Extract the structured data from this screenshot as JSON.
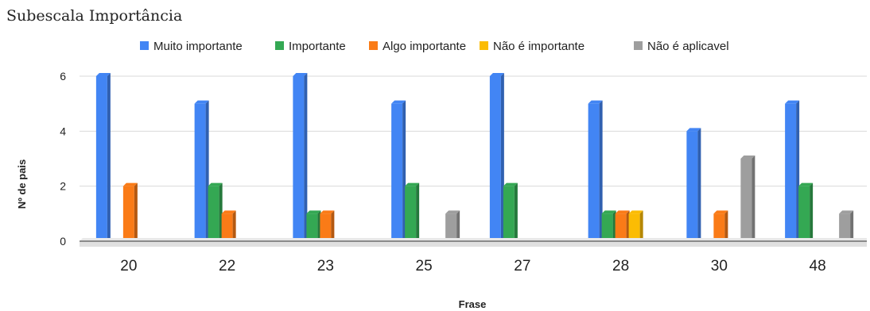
{
  "chart_data": {
    "type": "bar",
    "title": "Subescala Importância",
    "xlabel": "Frase",
    "ylabel": "Nº de pais",
    "categories": [
      "20",
      "22",
      "23",
      "25",
      "27",
      "28",
      "30",
      "48"
    ],
    "ylim": [
      0,
      6.5
    ],
    "yticks": [
      0,
      2,
      4,
      6
    ],
    "grid": true,
    "legend_position": "top",
    "series": [
      {
        "name": "Muito importante",
        "color": "#4285f4",
        "values": [
          6,
          5,
          6,
          5,
          6,
          5,
          4,
          5
        ]
      },
      {
        "name": "Importante",
        "color": "#34a853",
        "values": [
          0,
          2,
          1,
          2,
          2,
          1,
          0,
          2
        ]
      },
      {
        "name": "Algo importante",
        "color": "#fa7b17",
        "values": [
          2,
          1,
          1,
          0,
          0,
          1,
          1,
          0
        ]
      },
      {
        "name": "Não é importante",
        "color": "#fbbc04",
        "values": [
          0,
          0,
          0,
          0,
          0,
          1,
          0,
          0
        ]
      },
      {
        "name": "Não é aplicavel",
        "color": "#9e9e9e",
        "values": [
          0,
          0,
          0,
          1,
          0,
          0,
          3,
          1
        ]
      }
    ]
  }
}
